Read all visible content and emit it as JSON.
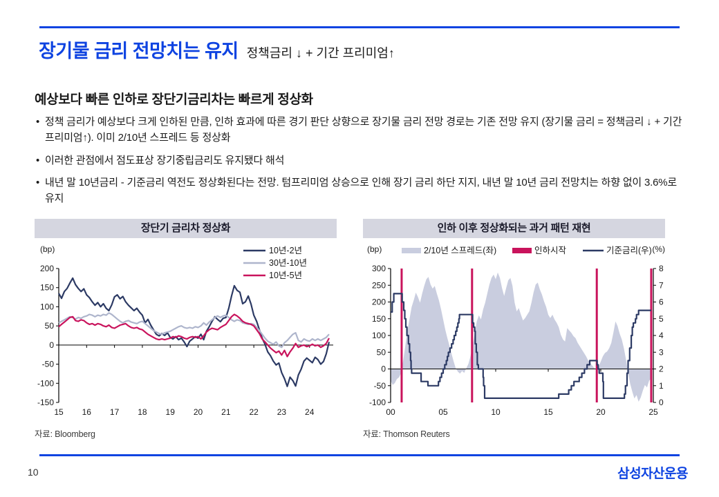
{
  "page": {
    "number": "10",
    "logo": "삼성자산운용"
  },
  "header": {
    "title": "장기물 금리 전망치는 유지",
    "subtitle": "정책금리 ↓ + 기간 프리미엄↑"
  },
  "lead": {
    "heading": "예상보다 빠른 인하로 장단기금리차는 빠르게 정상화",
    "bullets": [
      "정책 금리가 예상보다 크게 인하된 만큼, 인하 효과에 따른 경기 판단 상향으로 장기물 금리 전망 경로는 기존 전망 유지 (장기물 금리 = 정책금리 ↓ + 기간 프리미엄↑). 이미 2/10년 스프레드 등 정상화",
      "이러한 관점에서 점도표상 장기중립금리도 유지됐다 해석",
      "내년 말 10년금리 - 기준금리 역전도 정상화된다는 전망. 텀프리미엄 상승으로 인해 장기 금리 하단 지지, 내년 말 10년 금리 전망치는 하향 없이 3.6%로 유지"
    ]
  },
  "colors": {
    "accent_blue": "#0e43e1",
    "navy": "#2c3a64",
    "lavender": "#aeb5cc",
    "area_fill": "#c9cddf",
    "crimson": "#c9135c",
    "band_bg": "#d5d6e0"
  },
  "chart_data": [
    {
      "type": "line",
      "title": "장단기 금리차 정상화",
      "source": "자료: Bloomberg",
      "unit_left": "(bp)",
      "xlim": [
        15,
        24.85
      ],
      "ylim_left": [
        -150,
        200
      ],
      "yticks_left": [
        200,
        150,
        100,
        50,
        0,
        -50,
        -100,
        -150
      ],
      "xticks": [
        15,
        16,
        17,
        18,
        19,
        20,
        21,
        22,
        23,
        24
      ],
      "xtick_labels": [
        "15",
        "16",
        "17",
        "18",
        "19",
        "20",
        "21",
        "22",
        "23",
        "24"
      ],
      "grid": false,
      "legend_position": "top-right-stack",
      "series": [
        {
          "name": "10년-2년",
          "type": "line",
          "axis": "left",
          "color": "#2c3a64",
          "x_start": 15.0,
          "x_step": 0.1,
          "values": [
            135,
            122,
            140,
            148,
            162,
            175,
            158,
            148,
            140,
            147,
            131,
            124,
            113,
            104,
            111,
            100,
            108,
            96,
            90,
            105,
            126,
            131,
            121,
            127,
            113,
            104,
            97,
            90,
            96,
            86,
            78,
            58,
            67,
            52,
            40,
            28,
            24,
            30,
            25,
            32,
            20,
            16,
            22,
            14,
            18,
            8,
            -4,
            10,
            16,
            22,
            18,
            28,
            14,
            36,
            48,
            62,
            74,
            67,
            61,
            70,
            72,
            96,
            128,
            155,
            143,
            138,
            108,
            113,
            128,
            107,
            78,
            62,
            40,
            18,
            2,
            -18,
            -28,
            -42,
            -52,
            -47,
            -72,
            -88,
            -108,
            -84,
            -93,
            -107,
            -78,
            -63,
            -42,
            -34,
            -40,
            -46,
            -32,
            -38,
            -50,
            -43,
            -23,
            8
          ]
        },
        {
          "name": "30년-10년",
          "type": "line",
          "axis": "left",
          "color": "#aeb5cc",
          "x_start": 15.0,
          "x_step": 0.1,
          "values": [
            58,
            62,
            66,
            70,
            74,
            72,
            68,
            72,
            70,
            74,
            76,
            80,
            78,
            74,
            78,
            76,
            80,
            78,
            84,
            80,
            74,
            68,
            62,
            58,
            62,
            64,
            60,
            58,
            56,
            60,
            62,
            56,
            50,
            44,
            38,
            34,
            30,
            28,
            32,
            34,
            36,
            40,
            44,
            48,
            50,
            46,
            44,
            46,
            44,
            48,
            46,
            50,
            58,
            52,
            60,
            66,
            72,
            76,
            72,
            76,
            78,
            72,
            66,
            62,
            66,
            64,
            58,
            56,
            54,
            56,
            54,
            46,
            38,
            28,
            18,
            10,
            6,
            2,
            8,
            -2,
            -6,
            6,
            12,
            20,
            28,
            32,
            12,
            8,
            16,
            12,
            10,
            16,
            12,
            16,
            12,
            16,
            20,
            28
          ]
        },
        {
          "name": "10년-5년",
          "type": "line",
          "axis": "left",
          "color": "#c9135c",
          "x_start": 15.0,
          "x_step": 0.1,
          "values": [
            48,
            54,
            60,
            66,
            72,
            74,
            64,
            62,
            66,
            64,
            58,
            54,
            56,
            52,
            56,
            54,
            50,
            48,
            52,
            46,
            44,
            48,
            52,
            54,
            56,
            50,
            46,
            44,
            46,
            42,
            40,
            34,
            28,
            24,
            20,
            16,
            14,
            16,
            14,
            16,
            18,
            22,
            20,
            24,
            22,
            18,
            16,
            20,
            22,
            20,
            22,
            16,
            24,
            34,
            40,
            44,
            42,
            40,
            46,
            50,
            54,
            64,
            74,
            80,
            76,
            70,
            62,
            58,
            56,
            54,
            50,
            40,
            30,
            16,
            8,
            0,
            -8,
            -14,
            -20,
            -16,
            -26,
            -14,
            -30,
            -18,
            -8,
            4,
            -6,
            -2,
            0,
            -4,
            -2,
            2,
            -2,
            0,
            -6,
            -2,
            4,
            18
          ]
        }
      ]
    },
    {
      "type": "mixed",
      "title": "인하 이후 정상화되는 과거 패턴 재현",
      "source": "자료: Thomson Reuters",
      "unit_left": "(bp)",
      "unit_right": "(%)",
      "xlim": [
        0,
        25
      ],
      "ylim_left": [
        -100,
        300
      ],
      "ylim_right": [
        0,
        8
      ],
      "yticks_left": [
        300,
        250,
        200,
        150,
        100,
        50,
        0,
        -50,
        -100
      ],
      "yticks_right": [
        8,
        7,
        6,
        5,
        4,
        3,
        2,
        1,
        0
      ],
      "xticks": [
        0,
        5,
        10,
        15,
        20,
        25
      ],
      "xtick_labels": [
        "00",
        "05",
        "10",
        "15",
        "20",
        "25"
      ],
      "grid": false,
      "legend_position": "top-row",
      "series": [
        {
          "name": "2/10년 스프레드(좌)",
          "type": "area",
          "axis": "left",
          "color": "#c9cddf",
          "x_start": 0.0,
          "x_step": 0.2,
          "values": [
            -35,
            -48,
            -42,
            -30,
            -25,
            -12,
            25,
            70,
            115,
            150,
            185,
            205,
            228,
            215,
            198,
            225,
            248,
            268,
            275,
            252,
            240,
            248,
            225,
            205,
            178,
            148,
            118,
            92,
            70,
            45,
            22,
            2,
            -8,
            -14,
            -6,
            -12,
            2,
            15,
            38,
            68,
            105,
            142,
            160,
            148,
            178,
            198,
            225,
            252,
            272,
            282,
            268,
            288,
            272,
            242,
            218,
            242,
            265,
            272,
            248,
            198,
            172,
            182,
            162,
            145,
            152,
            162,
            172,
            198,
            228,
            252,
            258,
            238,
            222,
            202,
            185,
            162,
            152,
            162,
            148,
            138,
            125,
            102,
            88,
            82,
            122,
            115,
            108,
            98,
            92,
            78,
            68,
            58,
            48,
            38,
            25,
            18,
            10,
            2,
            -4,
            8,
            22,
            38,
            48,
            52,
            62,
            78,
            108,
            142,
            128,
            105,
            88,
            62,
            28,
            -12,
            -45,
            -68,
            -88,
            -78,
            -98,
            -85,
            -65,
            -48,
            -55,
            -35,
            -28
          ]
        },
        {
          "name": "인하시작",
          "type": "vlines",
          "color": "#c9135c",
          "x": [
            1.05,
            7.75,
            19.62,
            24.8
          ]
        },
        {
          "name": "기준금리(우)",
          "type": "step",
          "axis": "right",
          "color": "#2c3a64",
          "x": [
            0,
            0.15,
            0.3,
            1.0,
            1.1,
            1.25,
            1.35,
            1.45,
            1.55,
            1.7,
            1.8,
            1.9,
            1.95,
            2.0,
            2.85,
            2.9,
            3.45,
            3.55,
            4.45,
            4.55,
            4.7,
            4.85,
            5.0,
            5.15,
            5.3,
            5.4,
            5.5,
            5.65,
            5.8,
            5.95,
            6.05,
            6.2,
            6.3,
            6.4,
            6.5,
            6.55,
            7.7,
            7.8,
            7.9,
            8.0,
            8.05,
            8.15,
            8.25,
            8.35,
            8.75,
            8.8,
            8.85,
            8.95,
            15.95,
            16.0,
            16.95,
            17.2,
            17.45,
            17.95,
            18.2,
            18.45,
            18.7,
            18.95,
            19.6,
            19.65,
            19.75,
            19.85,
            20.15,
            20.2,
            20.25,
            22.2,
            22.25,
            22.35,
            22.5,
            22.6,
            22.75,
            22.9,
            23.0,
            23.1,
            23.3,
            23.4,
            23.6,
            24.8
          ],
          "y": [
            5.4,
            6.0,
            6.5,
            6.5,
            6.0,
            5.5,
            5.0,
            4.5,
            4.0,
            3.5,
            3.0,
            2.5,
            2.0,
            1.75,
            1.75,
            1.25,
            1.25,
            1.0,
            1.0,
            1.25,
            1.5,
            1.75,
            2.0,
            2.25,
            2.5,
            2.75,
            3.0,
            3.25,
            3.5,
            3.75,
            4.0,
            4.25,
            4.5,
            4.75,
            5.0,
            5.25,
            5.25,
            4.75,
            4.5,
            4.25,
            3.5,
            3.0,
            2.25,
            2.0,
            2.0,
            1.5,
            1.0,
            0.25,
            0.25,
            0.5,
            0.75,
            1.0,
            1.25,
            1.5,
            1.75,
            2.0,
            2.25,
            2.5,
            2.5,
            2.25,
            2.0,
            1.75,
            1.75,
            1.25,
            0.25,
            0.25,
            0.5,
            1.0,
            1.75,
            2.5,
            3.25,
            4.0,
            4.5,
            4.75,
            5.0,
            5.25,
            5.5,
            5.5
          ]
        }
      ]
    }
  ]
}
